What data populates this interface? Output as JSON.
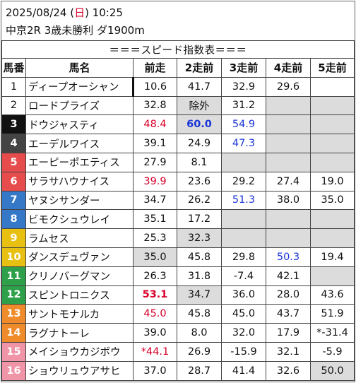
{
  "header": {
    "date_prefix": "2025/08/24 (",
    "weekday": "日",
    "date_suffix": ") 10:25",
    "race": "中京2R 3歳未勝利 ダ1900m"
  },
  "table_title": "＝＝＝スピード指数表＝＝＝",
  "columns": [
    "馬番",
    "馬名",
    "前走",
    "2走前",
    "3走前",
    "4走前",
    "5走前"
  ],
  "rows": [
    {
      "num": "1",
      "name": "ディープオーシャン",
      "vals": [
        "10.6",
        "41.7",
        "32.9",
        "29.6",
        ""
      ],
      "styles": [
        "",
        "",
        "",
        "",
        ""
      ]
    },
    {
      "num": "2",
      "name": "ロードプライズ",
      "vals": [
        "32.8",
        "除外",
        "31.2",
        "",
        ""
      ],
      "styles": [
        "",
        "gray",
        "",
        "gray",
        "gray"
      ]
    },
    {
      "num": "3",
      "name": "ドウジャスティ",
      "vals": [
        "48.4",
        "60.0",
        "54.9",
        "",
        ""
      ],
      "styles": [
        "red",
        "gray blue bold",
        "blue",
        "gray",
        "gray"
      ]
    },
    {
      "num": "4",
      "name": "エーデルワイス",
      "vals": [
        "39.1",
        "24.9",
        "47.3",
        "",
        ""
      ],
      "styles": [
        "",
        "",
        "blue",
        "gray",
        "gray"
      ]
    },
    {
      "num": "5",
      "name": "エーピーポエティス",
      "vals": [
        "27.9",
        "8.1",
        "",
        "",
        ""
      ],
      "styles": [
        "",
        "",
        "gray",
        "gray",
        "gray"
      ]
    },
    {
      "num": "6",
      "name": "サラサハウナイス",
      "vals": [
        "39.9",
        "23.6",
        "29.2",
        "27.4",
        "19.0"
      ],
      "styles": [
        "red",
        "",
        "",
        "",
        ""
      ]
    },
    {
      "num": "7",
      "name": "ヤヌシサンダー",
      "vals": [
        "34.7",
        "26.2",
        "51.3",
        "38.0",
        "35.0"
      ],
      "styles": [
        "",
        "",
        "blue",
        "",
        ""
      ]
    },
    {
      "num": "8",
      "name": "ビモクシュウレイ",
      "vals": [
        "35.1",
        "17.2",
        "",
        "",
        ""
      ],
      "styles": [
        "",
        "",
        "gray",
        "gray",
        "gray"
      ]
    },
    {
      "num": "9",
      "name": "ラムセス",
      "vals": [
        "25.3",
        "32.3",
        "",
        "",
        ""
      ],
      "styles": [
        "",
        "gray",
        "gray",
        "gray",
        "gray"
      ]
    },
    {
      "num": "10",
      "name": "ダンスデュヴァン",
      "vals": [
        "35.0",
        "45.8",
        "29.8",
        "50.3",
        "19.4"
      ],
      "styles": [
        "gray",
        "",
        "",
        "blue",
        ""
      ]
    },
    {
      "num": "11",
      "name": "クリノバーグマン",
      "vals": [
        "26.3",
        "31.8",
        "-7.4",
        "42.1",
        ""
      ],
      "styles": [
        "",
        "",
        "",
        "",
        "gray"
      ]
    },
    {
      "num": "12",
      "name": "スピントロニクス",
      "vals": [
        "53.1",
        "34.7",
        "36.0",
        "28.0",
        "43.6"
      ],
      "styles": [
        "red bold",
        "gray",
        "",
        "",
        ""
      ]
    },
    {
      "num": "13",
      "name": "サントモナルカ",
      "vals": [
        "45.0",
        "45.8",
        "45.0",
        "43.7",
        "51.9"
      ],
      "styles": [
        "red",
        "",
        "",
        "",
        ""
      ]
    },
    {
      "num": "14",
      "name": "ラグナトーレ",
      "vals": [
        "39.0",
        "8.0",
        "32.0",
        "17.9",
        "*-31.4"
      ],
      "styles": [
        "",
        "",
        "",
        "",
        ""
      ]
    },
    {
      "num": "15",
      "name": "メイショウカジボウ",
      "vals": [
        "*44.1",
        "26.9",
        "-15.9",
        "32.1",
        "-5.9"
      ],
      "styles": [
        "red",
        "",
        "",
        "",
        ""
      ]
    },
    {
      "num": "16",
      "name": "ショウリュウアサヒ",
      "vals": [
        "37.0",
        "28.7",
        "41.4",
        "32.6",
        "50.0"
      ],
      "styles": [
        "",
        "",
        "",
        "",
        "gray"
      ]
    }
  ]
}
